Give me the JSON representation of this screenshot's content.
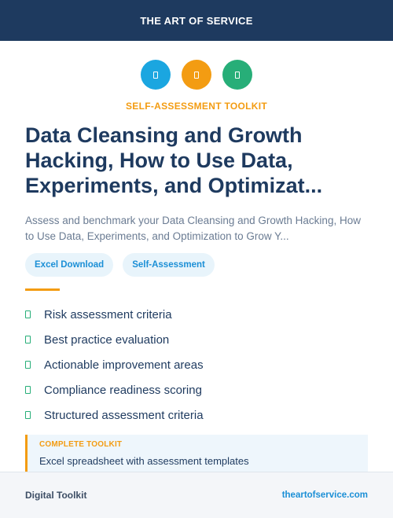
{
  "header": {
    "brand": "THE ART OF SERVICE"
  },
  "icons": [
    {
      "name": "document-icon",
      "color": "#1ba6e0"
    },
    {
      "name": "document-icon",
      "color": "#f39c12"
    },
    {
      "name": "document-icon",
      "color": "#27ae78"
    }
  ],
  "eyebrow": "SELF-ASSESSMENT TOOLKIT",
  "title": "Data Cleansing and Growth Hacking, How to Use Data, Experiments, and Optimizat...",
  "subtitle": "Assess and benchmark your Data Cleansing and Growth Hacking, How to Use Data, Experiments, and Optimization to Grow Y...",
  "tags": [
    "Excel Download",
    "Self-Assessment"
  ],
  "features": [
    "Risk assessment criteria",
    "Best practice evaluation",
    "Actionable improvement areas",
    "Compliance readiness scoring",
    "Structured assessment criteria"
  ],
  "toolkit": {
    "label": "COMPLETE TOOLKIT",
    "description": "Excel spreadsheet with assessment templates"
  },
  "footer": {
    "left": "Digital Toolkit",
    "right": "theartofservice.com"
  },
  "colors": {
    "navy": "#1e3a5f",
    "accent_orange": "#f39c12",
    "accent_blue": "#1b8fd6",
    "accent_green": "#27ae78"
  }
}
